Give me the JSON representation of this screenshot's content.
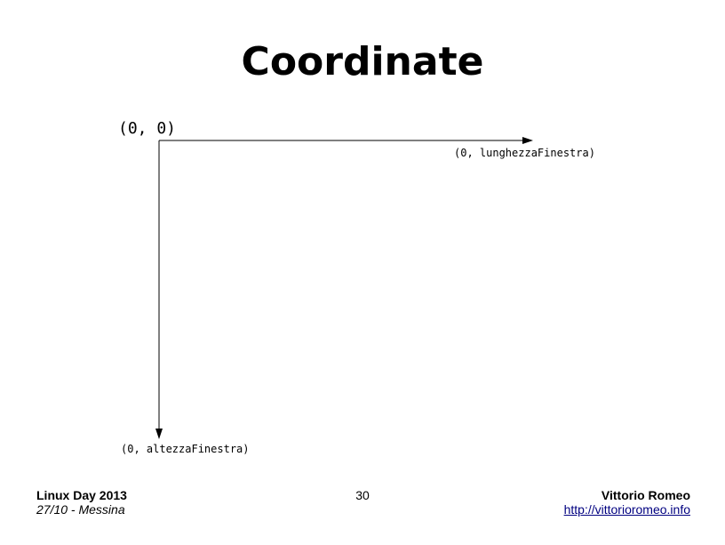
{
  "slide": {
    "title": "Coordinate"
  },
  "diagram": {
    "origin_label": "(0, 0)",
    "x_axis_end_label": "(0, lunghezzaFinestra)",
    "y_axis_end_label": "(0, altezzaFinestra)"
  },
  "footer": {
    "event": "Linux Day 2013",
    "date_place": "27/10 - Messina",
    "page_number": "30",
    "author": "Vittorio Romeo",
    "website": "http://vittorioromeo.info"
  }
}
